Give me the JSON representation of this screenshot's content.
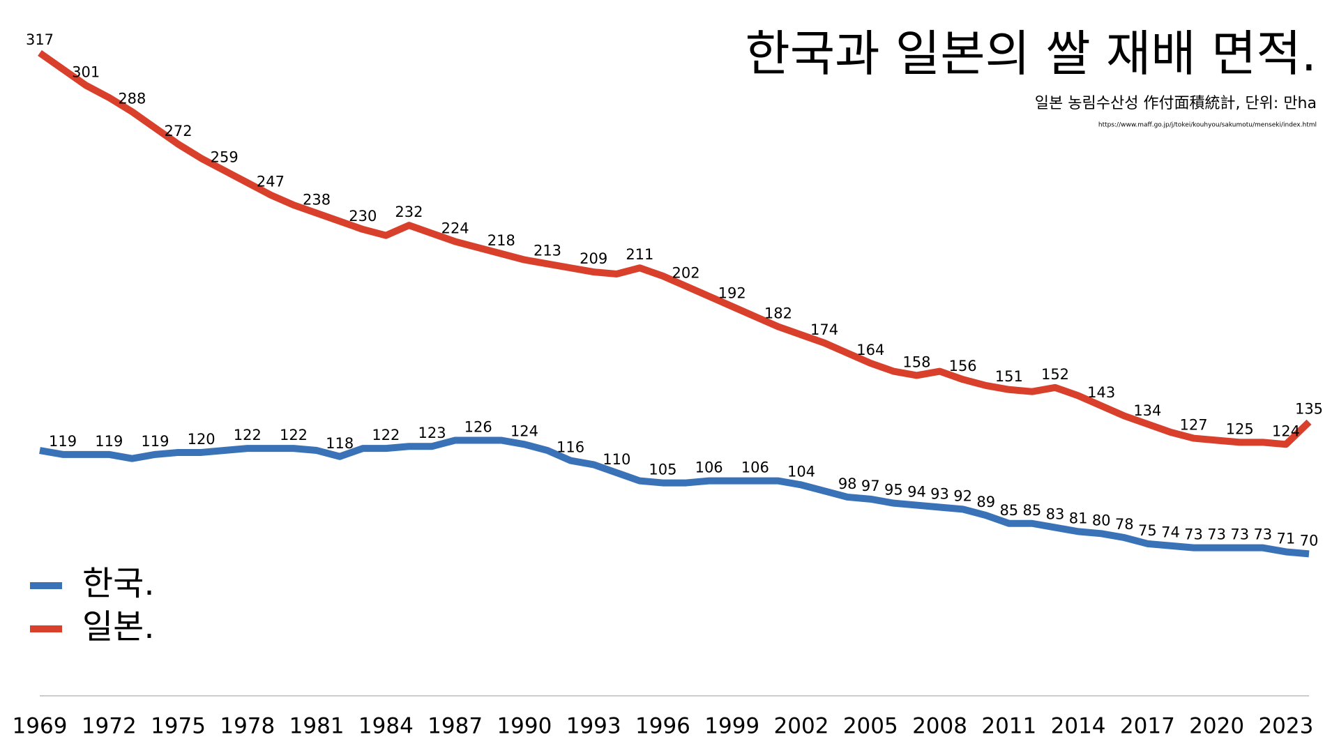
{
  "chart_data": {
    "type": "line",
    "title": "한국과 일본의 쌀 재배 면적.",
    "subtitle": "일본 농림수산성 作付面積統計, 단위: 만ha",
    "source": "https://www.maff.go.jp/j/tokei/kouhyou/sakumotu/menseki/index.html",
    "x": [
      1969,
      1970,
      1971,
      1972,
      1973,
      1974,
      1975,
      1976,
      1977,
      1978,
      1979,
      1980,
      1981,
      1982,
      1983,
      1984,
      1985,
      1986,
      1987,
      1988,
      1989,
      1990,
      1991,
      1992,
      1993,
      1994,
      1995,
      1996,
      1997,
      1998,
      1999,
      2000,
      2001,
      2002,
      2003,
      2004,
      2005,
      2006,
      2007,
      2008,
      2009,
      2010,
      2011,
      2012,
      2013,
      2014,
      2015,
      2016,
      2017,
      2018,
      2019,
      2020,
      2021,
      2022,
      2023,
      2024
    ],
    "xlim": [
      1969,
      2024
    ],
    "xticks": [
      1969,
      1972,
      1975,
      1978,
      1981,
      1984,
      1987,
      1990,
      1993,
      1996,
      1999,
      2002,
      2005,
      2008,
      2011,
      2014,
      2017,
      2020,
      2023
    ],
    "ylim": [
      0,
      340
    ],
    "legend": "bottom-left",
    "series": [
      {
        "name": "한국.",
        "color": "#3a72b8",
        "values": [
          121,
          119,
          119,
          119,
          117,
          119,
          120,
          120,
          121,
          122,
          122,
          122,
          121,
          118,
          122,
          122,
          123,
          123,
          126,
          126,
          126,
          124,
          121,
          116,
          114,
          110,
          106,
          105,
          105,
          106,
          106,
          106,
          106,
          104,
          101,
          98,
          97,
          95,
          94,
          93,
          92,
          89,
          85,
          85,
          83,
          81,
          80,
          78,
          75,
          74,
          73,
          73,
          73,
          73,
          71,
          70
        ],
        "value_labels": [
          null,
          "119",
          null,
          "119",
          null,
          "119",
          null,
          "120",
          null,
          "122",
          null,
          "122",
          null,
          "118",
          null,
          "122",
          null,
          "123",
          null,
          "126",
          null,
          "124",
          null,
          "116",
          null,
          "110",
          null,
          "105",
          null,
          "106",
          null,
          "106",
          null,
          "104",
          null,
          "98",
          "97",
          "95",
          "94",
          "93",
          "92",
          "89",
          "85",
          "85",
          "83",
          "81",
          "80",
          "78",
          "75",
          "74",
          "73",
          "73",
          "73",
          "73",
          "71",
          "70"
        ]
      },
      {
        "name": "일본.",
        "color": "#d9402c",
        "values": [
          317,
          309,
          301,
          295,
          288,
          280,
          272,
          265,
          259,
          253,
          247,
          242,
          238,
          234,
          230,
          227,
          232,
          228,
          224,
          221,
          218,
          215,
          213,
          211,
          209,
          208,
          211,
          207,
          202,
          197,
          192,
          187,
          182,
          178,
          174,
          169,
          164,
          160,
          158,
          160,
          156,
          153,
          151,
          150,
          152,
          148,
          143,
          138,
          134,
          130,
          127,
          126,
          125,
          125,
          124,
          135
        ],
        "value_labels": [
          "317",
          null,
          "301",
          null,
          "288",
          null,
          "272",
          null,
          "259",
          null,
          "247",
          null,
          "238",
          null,
          "230",
          null,
          "232",
          null,
          "224",
          null,
          "218",
          null,
          "213",
          null,
          "209",
          null,
          "211",
          null,
          "202",
          null,
          "192",
          null,
          "182",
          null,
          "174",
          null,
          "164",
          null,
          "158",
          null,
          "156",
          null,
          "151",
          null,
          "152",
          null,
          "143",
          null,
          "134",
          null,
          "127",
          null,
          "125",
          null,
          "124",
          "135"
        ]
      }
    ]
  }
}
